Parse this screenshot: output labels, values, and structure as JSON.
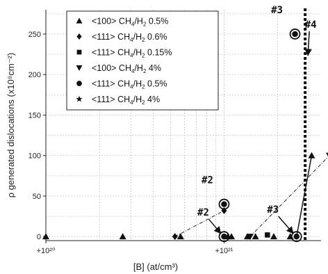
{
  "chart_data": {
    "type": "scatter",
    "xscale": "log",
    "xlim": [
      1e+20,
      3.5e+21
    ],
    "ylim": [
      -5,
      280
    ],
    "xlabel": "[B] (at/cm³)",
    "ylabel": "ρ generated dislocations (x10⁹cm⁻²)",
    "xticks": [
      {
        "value": 1e+20,
        "label": "+10²⁰"
      },
      {
        "value": 1e+21,
        "label": "+10²¹"
      }
    ],
    "yticks": [
      0,
      50,
      100,
      150,
      200,
      250
    ],
    "grid": true,
    "legend_position": "top-left",
    "legend_title_parts": [
      "CH",
      "4",
      "/H",
      "2"
    ],
    "series": [
      {
        "name": "<100> CH4/H2 0.5%",
        "label_prefix": "<100> ",
        "label_suffix": " 0.5%",
        "marker": "triangle-up",
        "points": [
          [
            1e+20,
            0
          ],
          [
            2.7e+20,
            0
          ],
          [
            5.7e+20,
            0
          ],
          [
            1.1e+21,
            0
          ],
          [
            1.5e+21,
            0
          ],
          [
            3.1e+21,
            100
          ]
        ]
      },
      {
        "name": "<111> CH4/H2 0.6%",
        "label_prefix": "<111> ",
        "label_suffix": " 0.6%",
        "marker": "diamond",
        "points": [
          [
            5.3e+20,
            0
          ],
          [
            1e+21,
            32
          ]
        ]
      },
      {
        "name": "<111> CH4/H2 0.15%",
        "label_prefix": "<111> ",
        "label_suffix": " 0.15%",
        "marker": "square",
        "points": [
          [
            1.75e+21,
            2
          ]
        ]
      },
      {
        "name": "<100> CH4/H2 4%",
        "label_prefix": "<100> ",
        "label_suffix": " 4%",
        "marker": "triangle-down",
        "points": [
          [
            1.4e+21,
            0
          ],
          [
            3.9e+21,
            100
          ]
        ]
      },
      {
        "name": "<111> CH4/H2 0.5%",
        "label_prefix": "<111> ",
        "label_suffix": " 0.5%",
        "marker": "circle",
        "points": [
          [
            1e+21,
            40
          ],
          [
            1e+21,
            0
          ],
          [
            2.5e+21,
            250
          ],
          [
            2.55e+21,
            0
          ]
        ]
      },
      {
        "name": "<111> CH4/H2 4%",
        "label_prefix": "<111> ",
        "label_suffix": " 4%",
        "marker": "star",
        "points": []
      }
    ],
    "extra_markers": [
      [
        1.05e+21,
        0
      ],
      [
        1.35e+21,
        0
      ],
      [
        1.9e+21,
        0
      ],
      [
        2.35e+21,
        0
      ]
    ],
    "lines": [
      {
        "style": "dashdot",
        "points": [
          [
            5.3e+20,
            0
          ],
          [
            1e+21,
            32
          ]
        ]
      },
      {
        "style": "dashdot",
        "points": [
          [
            1.4e+21,
            0
          ],
          [
            3.9e+21,
            100
          ]
        ]
      },
      {
        "style": "solid",
        "points": [
          [
            2.55e+21,
            0
          ],
          [
            3.1e+21,
            100
          ]
        ]
      }
    ],
    "vertical_line": {
      "x": 2.85e+21,
      "style": "dotted-thick"
    },
    "annotations": [
      {
        "text": "#2",
        "x": 1e+21,
        "y": 40
      },
      {
        "text": "#2",
        "x": 1e+21,
        "y": 0
      },
      {
        "text": "#3",
        "x": 2.5e+21,
        "y": 250
      },
      {
        "text": "#3",
        "x": 2.55e+21,
        "y": 0
      },
      {
        "text": "#4",
        "x": 2.85e+21,
        "y": 220
      }
    ]
  }
}
